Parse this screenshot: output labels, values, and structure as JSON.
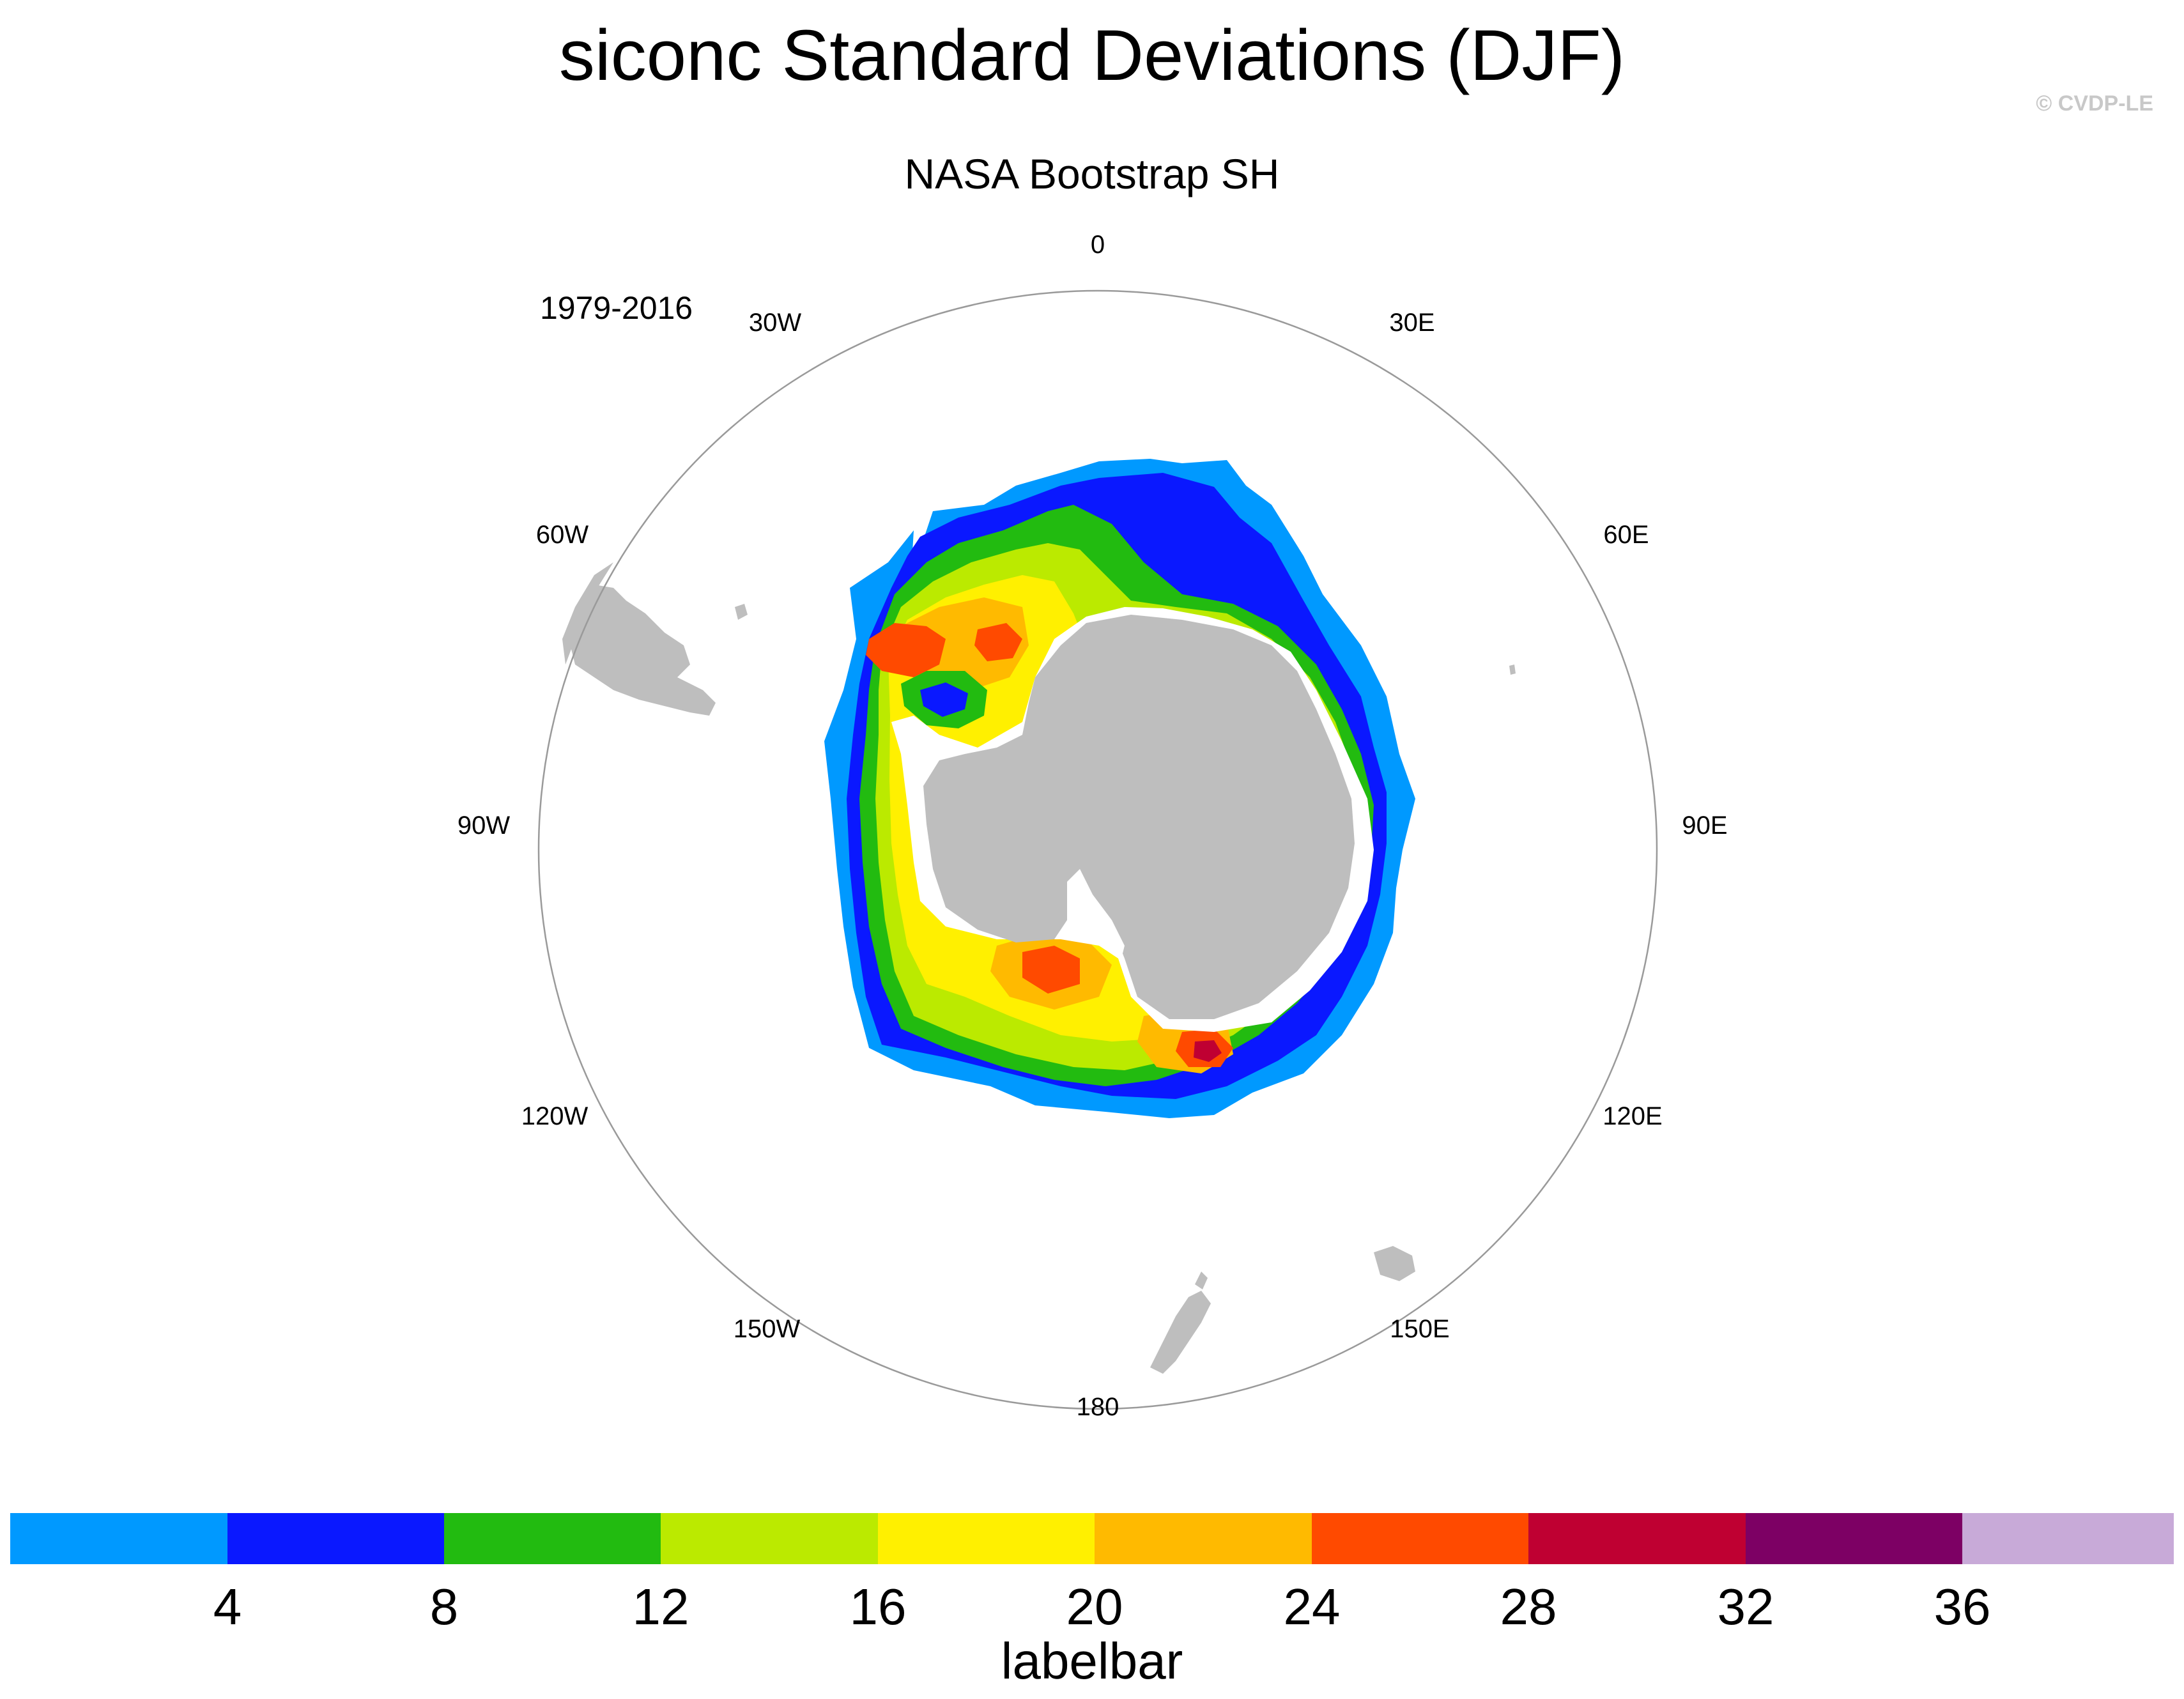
{
  "figure": {
    "title": "siconc Standard Deviations (DJF)",
    "credit": "© CVDP-LE",
    "subtitle": "NASA Bootstrap SH",
    "period": "1979-2016"
  },
  "map": {
    "projection": "south-polar-stereographic",
    "longitude_labels": [
      "0",
      "30E",
      "60E",
      "90E",
      "120E",
      "150E",
      "180",
      "150W",
      "120W",
      "90W",
      "60W",
      "30W"
    ],
    "land_color": "#bebebe",
    "ocean_color": "#ffffff",
    "boundary_color": "#9a9a9a"
  },
  "labelbar": {
    "title": "labelbar",
    "labels": [
      "4",
      "8",
      "12",
      "16",
      "20",
      "24",
      "28",
      "32",
      "36"
    ],
    "colors": [
      "#0099ff",
      "#0a18ff",
      "#22bb10",
      "#bbea00",
      "#fff000",
      "#ffba00",
      "#ff4a00",
      "#bf0032",
      "#7d0064",
      "#c8aad8"
    ]
  }
}
